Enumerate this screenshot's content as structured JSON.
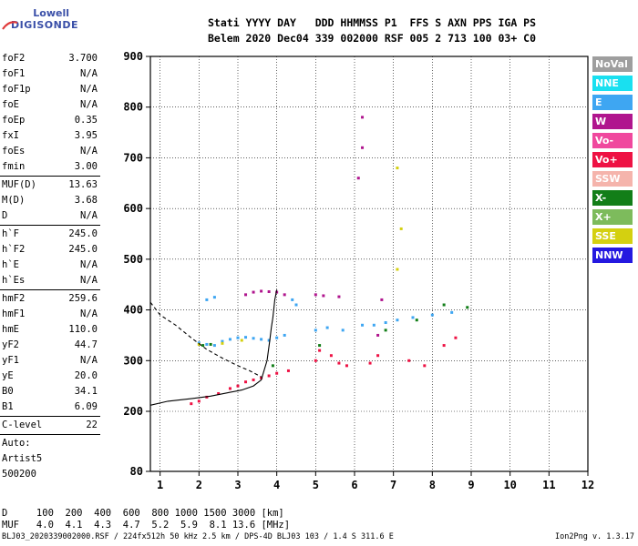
{
  "logo": {
    "brand_top": "Lowell",
    "brand_bottom": "DIGISONDE"
  },
  "header": {
    "line1": "Stati YYYY DAY   DDD HHMMSS P1  FFS S AXN PPS IGA PS",
    "line2": "Belem 2020 Dec04 339 002000 RSF 005 2 713 100 03+ C0"
  },
  "params": [
    {
      "k": "foF2",
      "v": "3.700"
    },
    {
      "k": "foF1",
      "v": "N/A"
    },
    {
      "k": "foF1p",
      "v": "N/A"
    },
    {
      "k": "foE",
      "v": "N/A"
    },
    {
      "k": "foEp",
      "v": "0.35"
    },
    {
      "k": "fxI",
      "v": "3.95"
    },
    {
      "k": "foEs",
      "v": "N/A"
    },
    {
      "k": "fmin",
      "v": "3.00"
    },
    {
      "sep": true
    },
    {
      "k": "MUF(D)",
      "v": "13.63"
    },
    {
      "k": "M(D)",
      "v": "3.68"
    },
    {
      "k": "D",
      "v": "N/A"
    },
    {
      "sep": true
    },
    {
      "k": "h`F",
      "v": "245.0"
    },
    {
      "k": "h`F2",
      "v": "245.0"
    },
    {
      "k": "h`E",
      "v": "N/A"
    },
    {
      "k": "h`Es",
      "v": "N/A"
    },
    {
      "sep": true
    },
    {
      "k": "hmF2",
      "v": "259.6"
    },
    {
      "k": "hmF1",
      "v": "N/A"
    },
    {
      "k": "hmE",
      "v": "110.0"
    },
    {
      "k": "yF2",
      "v": "44.7"
    },
    {
      "k": "yF1",
      "v": "N/A"
    },
    {
      "k": "yE",
      "v": "20.0"
    },
    {
      "k": "B0",
      "v": "34.1"
    },
    {
      "k": "B1",
      "v": "6.09"
    },
    {
      "sep": true
    },
    {
      "k": "C-level",
      "v": "22"
    },
    {
      "sep": true
    },
    {
      "k": "Auto:",
      "v": ""
    },
    {
      "k": "Artist5",
      "v": ""
    },
    {
      "k": "500200",
      "v": ""
    }
  ],
  "legend": [
    {
      "label": "NoVal",
      "color": "#9e9e9e"
    },
    {
      "label": "NNE",
      "color": "#19e0f0"
    },
    {
      "label": "E",
      "color": "#3ea6f2"
    },
    {
      "label": "W",
      "color": "#b0158e"
    },
    {
      "label": "Vo-",
      "color": "#f0489e"
    },
    {
      "label": "Vo+",
      "color": "#ee1244"
    },
    {
      "label": "SSW",
      "color": "#f5b4ac"
    },
    {
      "label": "X-",
      "color": "#127e18"
    },
    {
      "label": "X+",
      "color": "#7dbb5c"
    },
    {
      "label": "SSE",
      "color": "#d4d010"
    },
    {
      "label": "NNW",
      "color": "#2418e0"
    }
  ],
  "footer": {
    "d_line": "D     100  200  400  600  800 1000 1500 3000 [km]",
    "muf_line": "MUF   4.0  4.1  4.3  4.7  5.2  5.9  8.1 13.6 [MHz]",
    "file_line": "BLJ03_2020339002000.RSF / 224fx512h 50 kHz 2.5 km / DPS-4D BLJ03 103 / 1.4 S 311.6 E",
    "version": "Ion2Png v. 1.3.17"
  },
  "chart_data": {
    "type": "scatter",
    "x_ticks": [
      "1",
      "2",
      "3",
      "4",
      "5",
      "6",
      "7",
      "8",
      "9",
      "10",
      "11",
      "12"
    ],
    "y_ticks": [
      "80",
      "200",
      "300",
      "400",
      "500",
      "600",
      "700",
      "800",
      "900"
    ],
    "xlim": [
      0.75,
      12
    ],
    "ylim": [
      80,
      900
    ],
    "grid": true,
    "traces": [
      {
        "name": "Vo+",
        "color": "#ee1244",
        "points": [
          [
            1.8,
            215
          ],
          [
            2.0,
            220
          ],
          [
            2.2,
            228
          ],
          [
            2.5,
            235
          ],
          [
            2.8,
            245
          ],
          [
            3.0,
            250
          ],
          [
            3.2,
            258
          ],
          [
            3.4,
            262
          ],
          [
            3.6,
            266
          ],
          [
            3.8,
            270
          ],
          [
            4.0,
            275
          ],
          [
            4.3,
            280
          ],
          [
            5.0,
            300
          ],
          [
            5.1,
            320
          ],
          [
            5.4,
            310
          ],
          [
            5.6,
            295
          ],
          [
            5.8,
            290
          ],
          [
            6.4,
            295
          ],
          [
            6.6,
            310
          ],
          [
            7.4,
            300
          ],
          [
            7.8,
            290
          ],
          [
            8.3,
            330
          ],
          [
            8.6,
            345
          ]
        ]
      },
      {
        "name": "E",
        "color": "#3ea6f2",
        "points": [
          [
            2.0,
            335
          ],
          [
            2.2,
            332
          ],
          [
            2.4,
            330
          ],
          [
            2.6,
            338
          ],
          [
            2.8,
            342
          ],
          [
            3.0,
            345
          ],
          [
            3.2,
            346
          ],
          [
            3.4,
            344
          ],
          [
            3.6,
            342
          ],
          [
            3.8,
            340
          ],
          [
            4.0,
            345
          ],
          [
            4.2,
            350
          ],
          [
            4.4,
            420
          ],
          [
            4.5,
            410
          ],
          [
            5.0,
            360
          ],
          [
            5.3,
            365
          ],
          [
            5.7,
            360
          ],
          [
            6.2,
            370
          ],
          [
            6.5,
            370
          ],
          [
            6.8,
            375
          ],
          [
            7.1,
            380
          ],
          [
            7.5,
            385
          ],
          [
            8.0,
            390
          ],
          [
            8.5,
            395
          ],
          [
            2.2,
            420
          ],
          [
            2.4,
            425
          ]
        ]
      },
      {
        "name": "W",
        "color": "#b0158e",
        "points": [
          [
            3.2,
            430
          ],
          [
            3.4,
            435
          ],
          [
            3.6,
            437
          ],
          [
            3.8,
            436
          ],
          [
            4.0,
            435
          ],
          [
            4.2,
            430
          ],
          [
            5.0,
            430
          ],
          [
            5.2,
            428
          ],
          [
            5.6,
            426
          ],
          [
            6.1,
            660
          ],
          [
            6.2,
            720
          ],
          [
            6.2,
            780
          ],
          [
            6.6,
            350
          ],
          [
            6.7,
            420
          ]
        ]
      },
      {
        "name": "X-",
        "color": "#127e18",
        "points": [
          [
            2.1,
            330
          ],
          [
            2.3,
            332
          ],
          [
            3.9,
            290
          ],
          [
            5.1,
            330
          ],
          [
            6.8,
            360
          ],
          [
            7.6,
            380
          ],
          [
            8.3,
            410
          ],
          [
            8.9,
            405
          ]
        ]
      },
      {
        "name": "SSE",
        "color": "#d4d010",
        "points": [
          [
            2.0,
            332
          ],
          [
            2.6,
            334
          ],
          [
            3.1,
            340
          ],
          [
            7.1,
            480
          ],
          [
            7.2,
            560
          ],
          [
            7.1,
            680
          ]
        ]
      }
    ],
    "curves": [
      {
        "name": "profile",
        "style": "solid",
        "points": [
          [
            0.75,
            212
          ],
          [
            1.2,
            220
          ],
          [
            1.8,
            225
          ],
          [
            2.3,
            230
          ],
          [
            2.7,
            236
          ],
          [
            3.1,
            242
          ],
          [
            3.4,
            250
          ],
          [
            3.6,
            262
          ],
          [
            3.75,
            300
          ],
          [
            3.82,
            340
          ],
          [
            3.86,
            365
          ],
          [
            3.9,
            385
          ],
          [
            3.95,
            420
          ],
          [
            4.0,
            440
          ]
        ]
      },
      {
        "name": "dashed-trace",
        "style": "dashed",
        "points": [
          [
            0.75,
            415
          ],
          [
            1.0,
            390
          ],
          [
            1.4,
            370
          ],
          [
            1.8,
            345
          ],
          [
            2.2,
            322
          ],
          [
            2.6,
            305
          ],
          [
            3.0,
            290
          ],
          [
            3.3,
            280
          ],
          [
            3.6,
            268
          ]
        ]
      }
    ]
  }
}
